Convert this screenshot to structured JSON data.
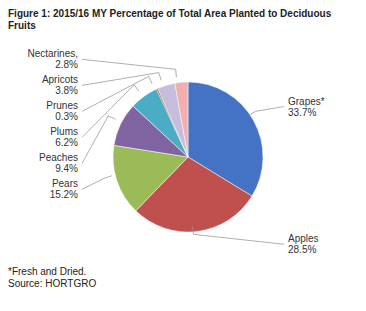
{
  "chart_data": {
    "type": "pie",
    "title": "Figure 1: 2015/16 MY Percentage of Total Area Planted to Deciduous Fruits",
    "categories": [
      "Grapes*",
      "Apples",
      "Pears",
      "Peaches",
      "Plums",
      "Prunes",
      "Apricots",
      "Nectarines,"
    ],
    "values": [
      33.7,
      28.5,
      15.2,
      9.4,
      6.2,
      0.3,
      3.8,
      2.8
    ],
    "value_labels": [
      "33.7%",
      "28.5%",
      "15.2%",
      "9.4%",
      "6.2%",
      "0.3%",
      "3.8%",
      "2.8%"
    ],
    "colors": [
      "#4472C4",
      "#C0504D",
      "#9BBB59",
      "#8064A2",
      "#4BACC6",
      "#984807",
      "#C6BCDB",
      "#F2AEAD"
    ],
    "data_labels": true,
    "annotations": [
      "*Fresh and Dried.",
      "Source: HORTGRO"
    ]
  }
}
